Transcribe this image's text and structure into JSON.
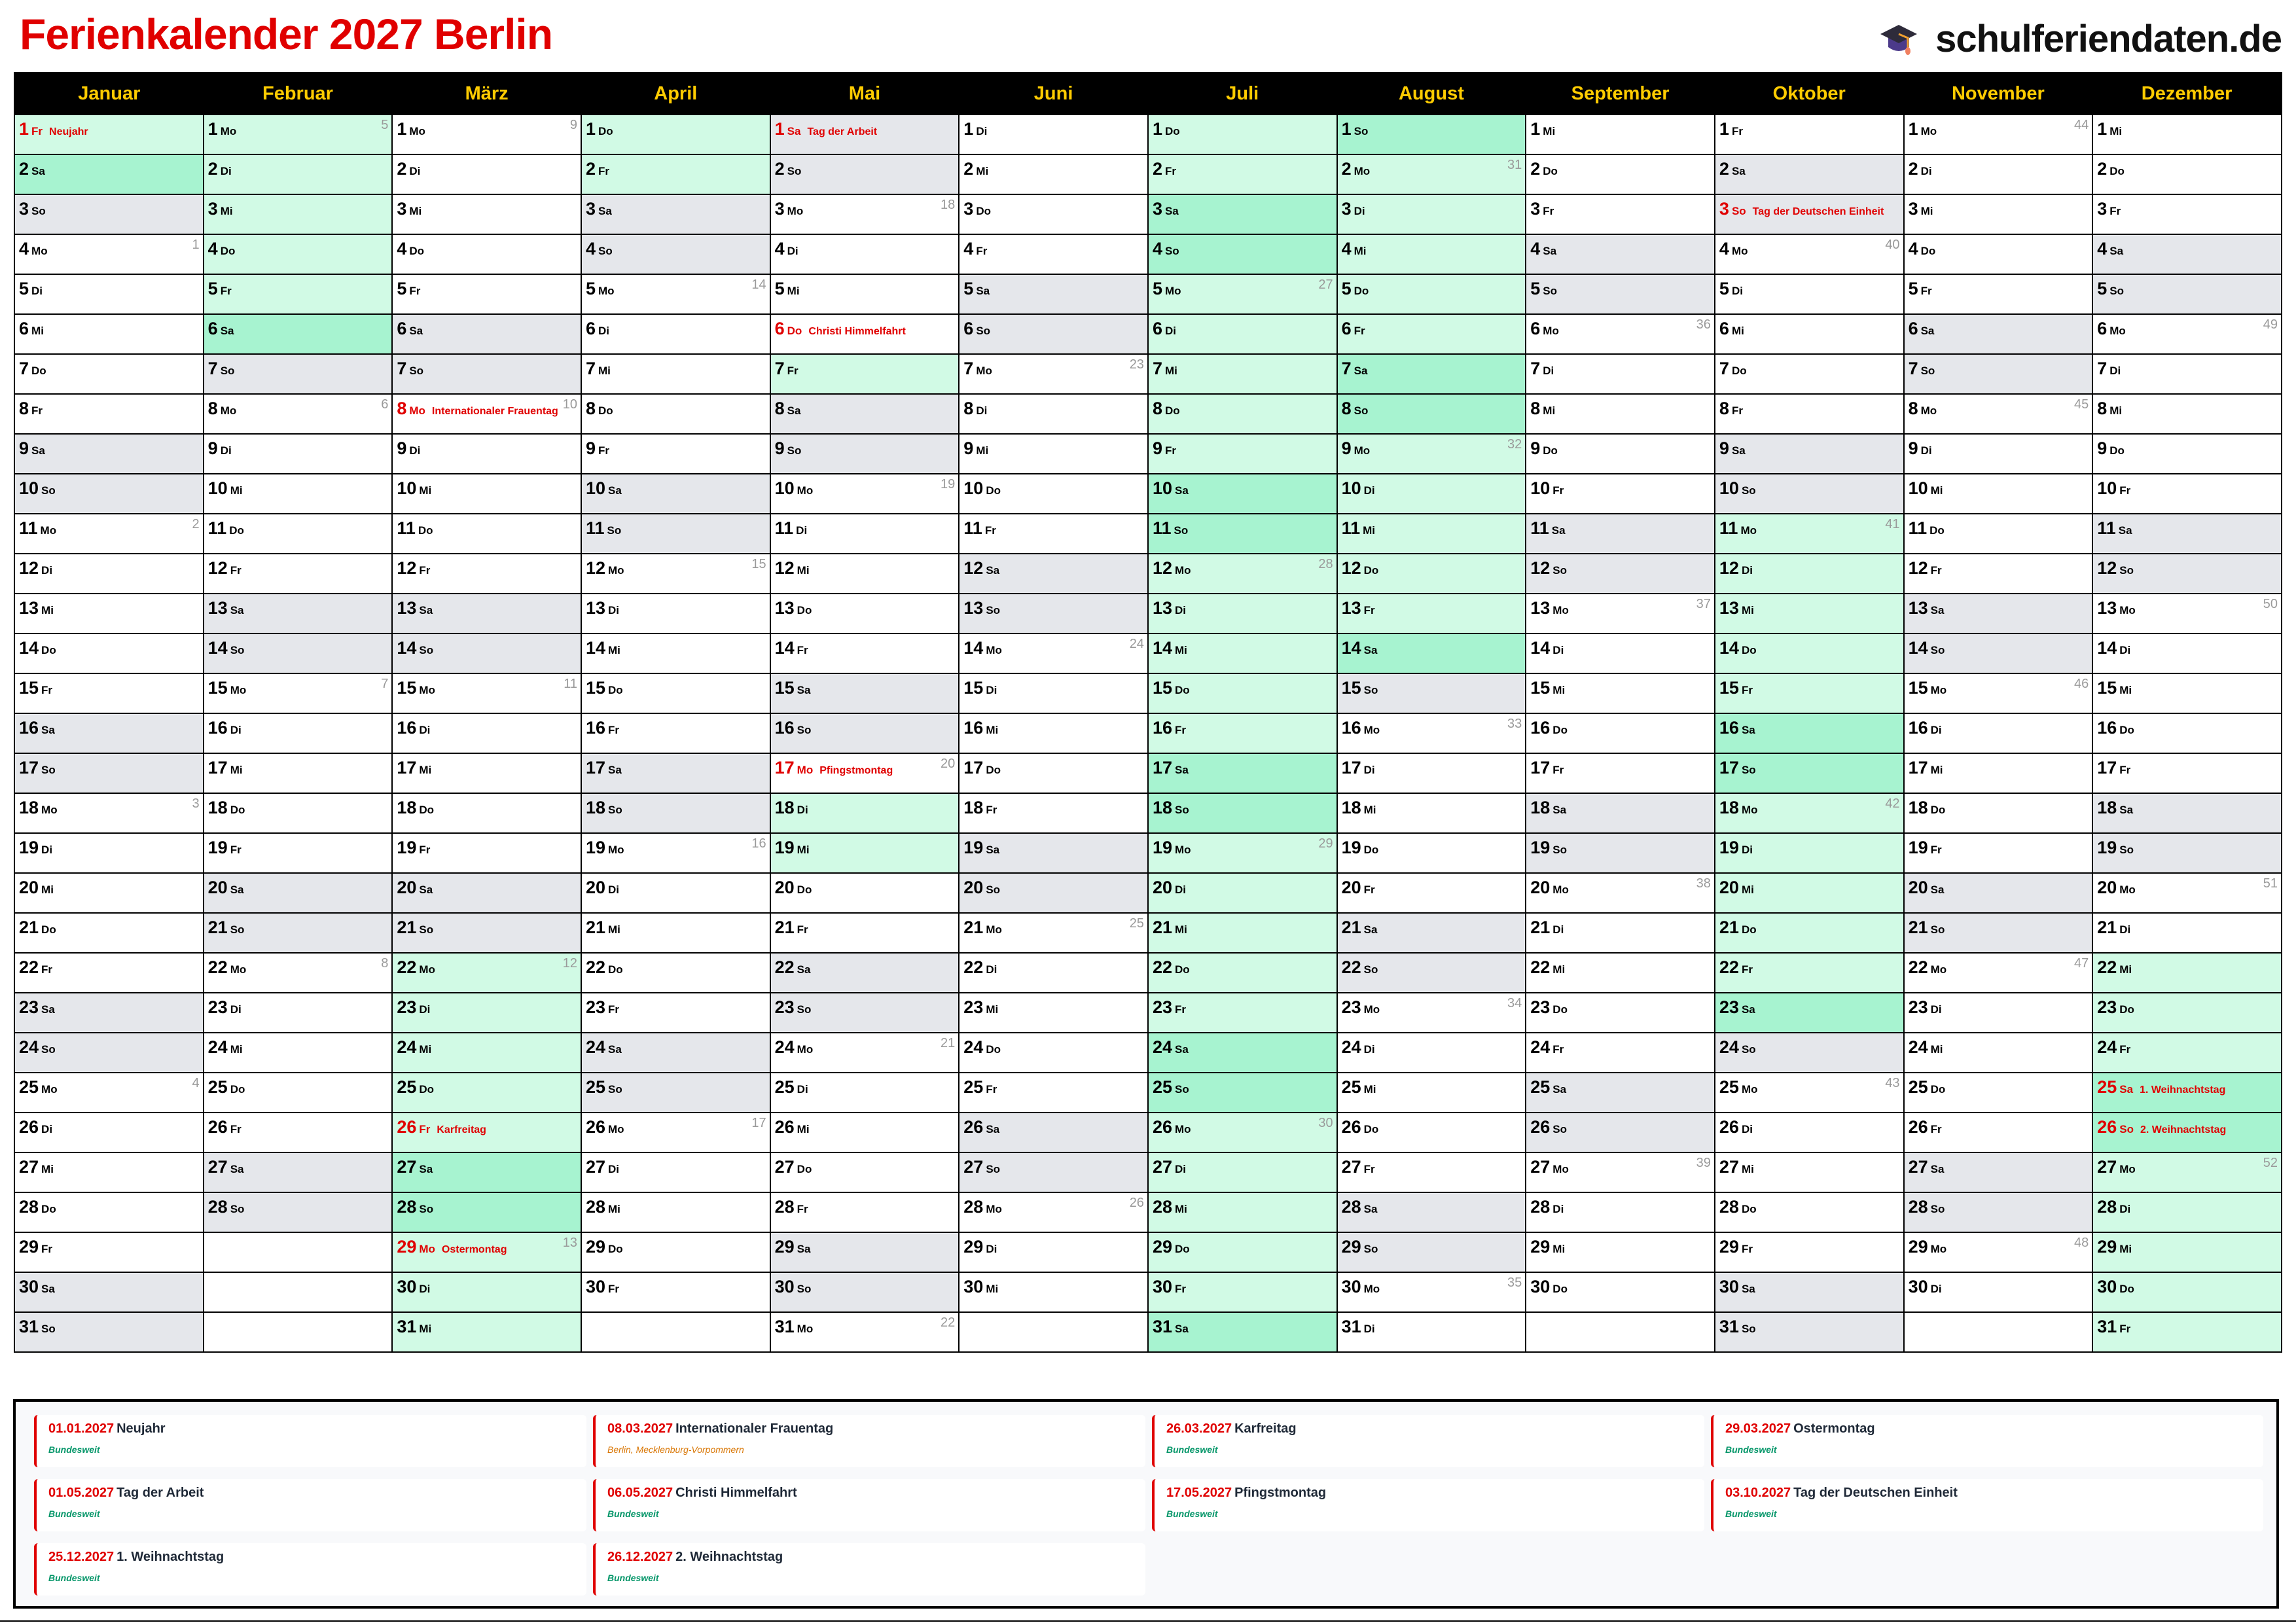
{
  "header": {
    "title": "Ferienkalender 2027 Berlin",
    "brand": "schulferiendaten.de",
    "brand_icon": "graduation-cap-icon"
  },
  "colors": {
    "title": "#e00000",
    "month_header_bg": "#000000",
    "month_header_text": "#ffcc00",
    "weekend": "#e5e7eb",
    "vacation": "#d1fae5",
    "vacation_weekend": "#a7f3d0",
    "holiday": "#e00000",
    "week_number": "#9a9a9a",
    "bundesweit": "#059669",
    "regional": "#d97706"
  },
  "weekdays": [
    "Mo",
    "Di",
    "Mi",
    "Do",
    "Fr",
    "Sa",
    "So"
  ],
  "months": [
    {
      "name": "Januar",
      "days": 31,
      "first_weekday": "Fr",
      "week_numbers": {
        "4": "1",
        "11": "2",
        "18": "3",
        "25": "4"
      },
      "holidays": {
        "1": "Neujahr"
      },
      "vacation": [
        [
          1,
          2
        ]
      ]
    },
    {
      "name": "Februar",
      "days": 28,
      "first_weekday": "Mo",
      "week_numbers": {
        "1": "5",
        "8": "6",
        "15": "7",
        "22": "8"
      },
      "holidays": {},
      "vacation": [
        [
          1,
          6
        ]
      ]
    },
    {
      "name": "März",
      "days": 31,
      "first_weekday": "Mo",
      "week_numbers": {
        "1": "9",
        "8": "10",
        "15": "11",
        "22": "12",
        "29": "13"
      },
      "holidays": {
        "8": "Internationaler Frauentag",
        "26": "Karfreitag",
        "29": "Ostermontag"
      },
      "vacation": [
        [
          22,
          31
        ]
      ]
    },
    {
      "name": "April",
      "days": 30,
      "first_weekday": "Do",
      "week_numbers": {
        "5": "14",
        "12": "15",
        "19": "16",
        "26": "17"
      },
      "holidays": {},
      "vacation": [
        [
          1,
          2
        ]
      ]
    },
    {
      "name": "Mai",
      "days": 31,
      "first_weekday": "Sa",
      "week_numbers": {
        "3": "18",
        "10": "19",
        "17": "20",
        "24": "21",
        "31": "22"
      },
      "holidays": {
        "1": "Tag der Arbeit",
        "6": "Christi Himmelfahrt",
        "17": "Pfingstmontag"
      },
      "vacation": [
        [
          7,
          7
        ],
        [
          18,
          19
        ]
      ]
    },
    {
      "name": "Juni",
      "days": 30,
      "first_weekday": "Di",
      "week_numbers": {
        "7": "23",
        "14": "24",
        "21": "25",
        "28": "26"
      },
      "holidays": {},
      "vacation": []
    },
    {
      "name": "Juli",
      "days": 31,
      "first_weekday": "Do",
      "week_numbers": {
        "5": "27",
        "12": "28",
        "19": "29",
        "26": "30"
      },
      "holidays": {},
      "vacation": [
        [
          1,
          31
        ]
      ]
    },
    {
      "name": "August",
      "days": 31,
      "first_weekday": "So",
      "week_numbers": {
        "2": "31",
        "9": "32",
        "16": "33",
        "23": "34",
        "30": "35"
      },
      "holidays": {},
      "vacation": [
        [
          1,
          14
        ]
      ]
    },
    {
      "name": "September",
      "days": 30,
      "first_weekday": "Mi",
      "week_numbers": {
        "6": "36",
        "13": "37",
        "20": "38",
        "27": "39"
      },
      "holidays": {},
      "vacation": []
    },
    {
      "name": "Oktober",
      "days": 31,
      "first_weekday": "Fr",
      "week_numbers": {
        "4": "40",
        "11": "41",
        "18": "42",
        "25": "43"
      },
      "holidays": {
        "3": "Tag der Deutschen Einheit"
      },
      "vacation": [
        [
          11,
          23
        ]
      ]
    },
    {
      "name": "November",
      "days": 30,
      "first_weekday": "Mo",
      "week_numbers": {
        "1": "44",
        "8": "45",
        "15": "46",
        "22": "47",
        "29": "48"
      },
      "holidays": {},
      "vacation": []
    },
    {
      "name": "Dezember",
      "days": 31,
      "first_weekday": "Mi",
      "week_numbers": {
        "6": "49",
        "13": "50",
        "20": "51",
        "27": "52"
      },
      "holidays": {
        "25": "1. Weihnachtstag",
        "26": "2. Weihnachtstag"
      },
      "vacation": [
        [
          22,
          31
        ]
      ]
    }
  ],
  "legend": [
    {
      "date": "01.01.2027",
      "name": "Neujahr",
      "region": "Bundesweit",
      "scope": "national"
    },
    {
      "date": "08.03.2027",
      "name": "Internationaler Frauentag",
      "region": "Berlin, Mecklenburg-Vorpommern",
      "scope": "regional"
    },
    {
      "date": "26.03.2027",
      "name": "Karfreitag",
      "region": "Bundesweit",
      "scope": "national"
    },
    {
      "date": "29.03.2027",
      "name": "Ostermontag",
      "region": "Bundesweit",
      "scope": "national"
    },
    {
      "date": "01.05.2027",
      "name": "Tag der Arbeit",
      "region": "Bundesweit",
      "scope": "national"
    },
    {
      "date": "06.05.2027",
      "name": "Christi Himmelfahrt",
      "region": "Bundesweit",
      "scope": "national"
    },
    {
      "date": "17.05.2027",
      "name": "Pfingstmontag",
      "region": "Bundesweit",
      "scope": "national"
    },
    {
      "date": "03.10.2027",
      "name": "Tag der Deutschen Einheit",
      "region": "Bundesweit",
      "scope": "national"
    },
    {
      "date": "25.12.2027",
      "name": "1. Weihnachtstag",
      "region": "Bundesweit",
      "scope": "national"
    },
    {
      "date": "26.12.2027",
      "name": "2. Weihnachtstag",
      "region": "Bundesweit",
      "scope": "national"
    }
  ]
}
